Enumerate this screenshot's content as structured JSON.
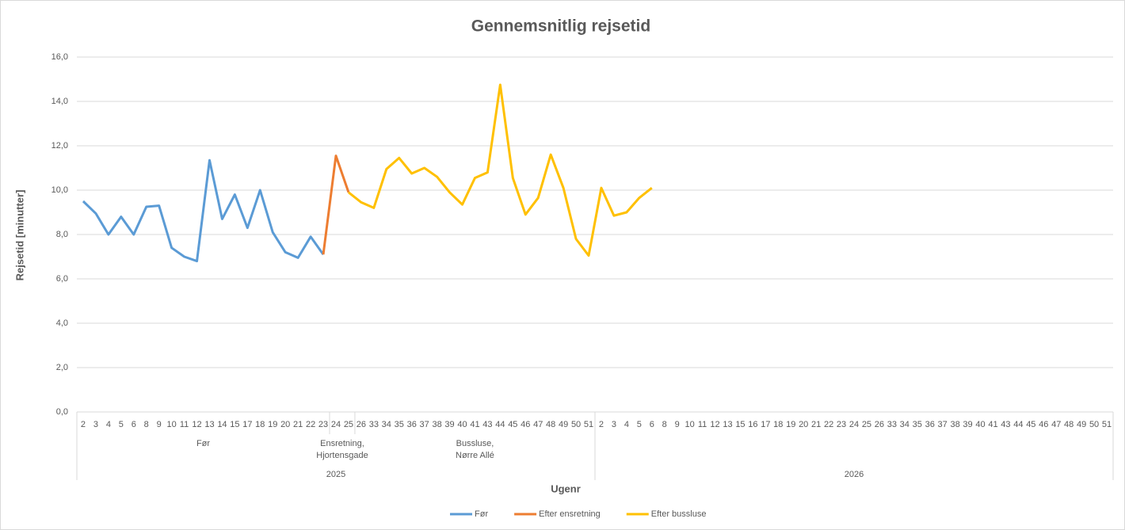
{
  "chart_data": {
    "type": "line",
    "title": "Gennemsnitlig rejsetid",
    "y_label": "Rejsetid [minutter]",
    "x_label": "Ugenr",
    "ylim": [
      0,
      16
    ],
    "yticks": [
      {
        "value": 0,
        "label": "0,0"
      },
      {
        "value": 2,
        "label": "2,0"
      },
      {
        "value": 4,
        "label": "4,0"
      },
      {
        "value": 6,
        "label": "6,0"
      },
      {
        "value": 8,
        "label": "8,0"
      },
      {
        "value": 10,
        "label": "10,0"
      },
      {
        "value": 12,
        "label": "12,0"
      },
      {
        "value": 14,
        "label": "14,0"
      },
      {
        "value": 16,
        "label": "16,0"
      }
    ],
    "grid": true,
    "legend": "bottom",
    "years": [
      {
        "label": "2025",
        "groups": [
          {
            "label": [
              "Før"
            ],
            "weeks": [
              "2",
              "3",
              "4",
              "5",
              "6",
              "8",
              "9",
              "10",
              "11",
              "12",
              "13",
              "14",
              "15",
              "17",
              "18",
              "19",
              "20",
              "21",
              "22",
              "23"
            ]
          },
          {
            "label": [
              "Ensretning,",
              "Hjortensgade"
            ],
            "weeks": [
              "24",
              "25"
            ]
          },
          {
            "label": [
              "Bussluse,",
              "Nørre Allé"
            ],
            "weeks": [
              "26",
              "33",
              "34",
              "35",
              "36",
              "37",
              "38",
              "39",
              "40",
              "41",
              "43",
              "44",
              "45",
              "46",
              "47",
              "48",
              "49",
              "50",
              "51"
            ]
          }
        ]
      },
      {
        "label": "2026",
        "weeks": [
          "2",
          "3",
          "4",
          "5",
          "6",
          "8",
          "9",
          "10",
          "11",
          "12",
          "13",
          "15",
          "16",
          "17",
          "18",
          "19",
          "20",
          "21",
          "22",
          "23",
          "24",
          "25",
          "26",
          "33",
          "34",
          "35",
          "36",
          "37",
          "38",
          "39",
          "40",
          "41",
          "43",
          "44",
          "45",
          "46",
          "47",
          "48",
          "49",
          "50",
          "51"
        ]
      }
    ],
    "series": [
      {
        "name": "Før",
        "color": "#5b9bd5",
        "values": [
          9.5,
          8.95,
          8.0,
          8.8,
          8.0,
          9.25,
          9.3,
          7.4,
          7.0,
          6.8,
          11.35,
          8.7,
          9.8,
          8.3,
          10.0,
          8.1,
          7.2,
          6.95,
          7.9,
          7.1,
          null,
          null,
          null,
          null,
          null,
          null,
          null,
          null,
          null,
          null,
          null,
          null,
          null,
          null,
          null,
          null,
          null,
          null,
          null,
          null,
          null,
          null,
          null,
          null,
          null,
          null,
          null,
          null,
          null,
          null,
          null,
          null,
          null,
          null,
          null,
          null,
          null,
          null,
          null,
          null,
          null,
          null,
          null,
          null,
          null,
          null,
          null,
          null,
          null,
          null,
          null,
          null,
          null,
          null,
          null,
          null,
          null,
          null,
          null,
          null,
          null,
          null
        ]
      },
      {
        "name": "Efter ensretning",
        "color": "#ed7d31",
        "values": [
          null,
          null,
          null,
          null,
          null,
          null,
          null,
          null,
          null,
          null,
          null,
          null,
          null,
          null,
          null,
          null,
          null,
          null,
          null,
          7.1,
          11.55,
          9.9,
          null,
          null,
          null,
          null,
          null,
          null,
          null,
          null,
          null,
          null,
          null,
          null,
          null,
          null,
          null,
          null,
          null,
          null,
          null,
          null,
          null,
          null,
          null,
          null,
          null,
          null,
          null,
          null,
          null,
          null,
          null,
          null,
          null,
          null,
          null,
          null,
          null,
          null,
          null,
          null,
          null,
          null,
          null,
          null,
          null,
          null,
          null,
          null,
          null,
          null,
          null,
          null,
          null,
          null,
          null,
          null,
          null,
          null,
          null,
          null
        ]
      },
      {
        "name": "Efter bussluse",
        "color": "#ffc000",
        "values": [
          null,
          null,
          null,
          null,
          null,
          null,
          null,
          null,
          null,
          null,
          null,
          null,
          null,
          null,
          null,
          null,
          null,
          null,
          null,
          null,
          null,
          9.9,
          9.45,
          9.2,
          10.95,
          11.45,
          10.75,
          11.0,
          10.6,
          9.9,
          9.35,
          10.55,
          10.8,
          14.75,
          10.55,
          8.9,
          9.65,
          11.6,
          10.1,
          7.8,
          7.05,
          10.1,
          8.85,
          9.0,
          9.65,
          10.1,
          null,
          null,
          null,
          null,
          null,
          null,
          null,
          null,
          null,
          null,
          null,
          null,
          null,
          null,
          null,
          null,
          null,
          null,
          null,
          null,
          null,
          null,
          null,
          null,
          null,
          null,
          null,
          null,
          null,
          null,
          null,
          null,
          null,
          null,
          null,
          null
        ]
      }
    ]
  }
}
